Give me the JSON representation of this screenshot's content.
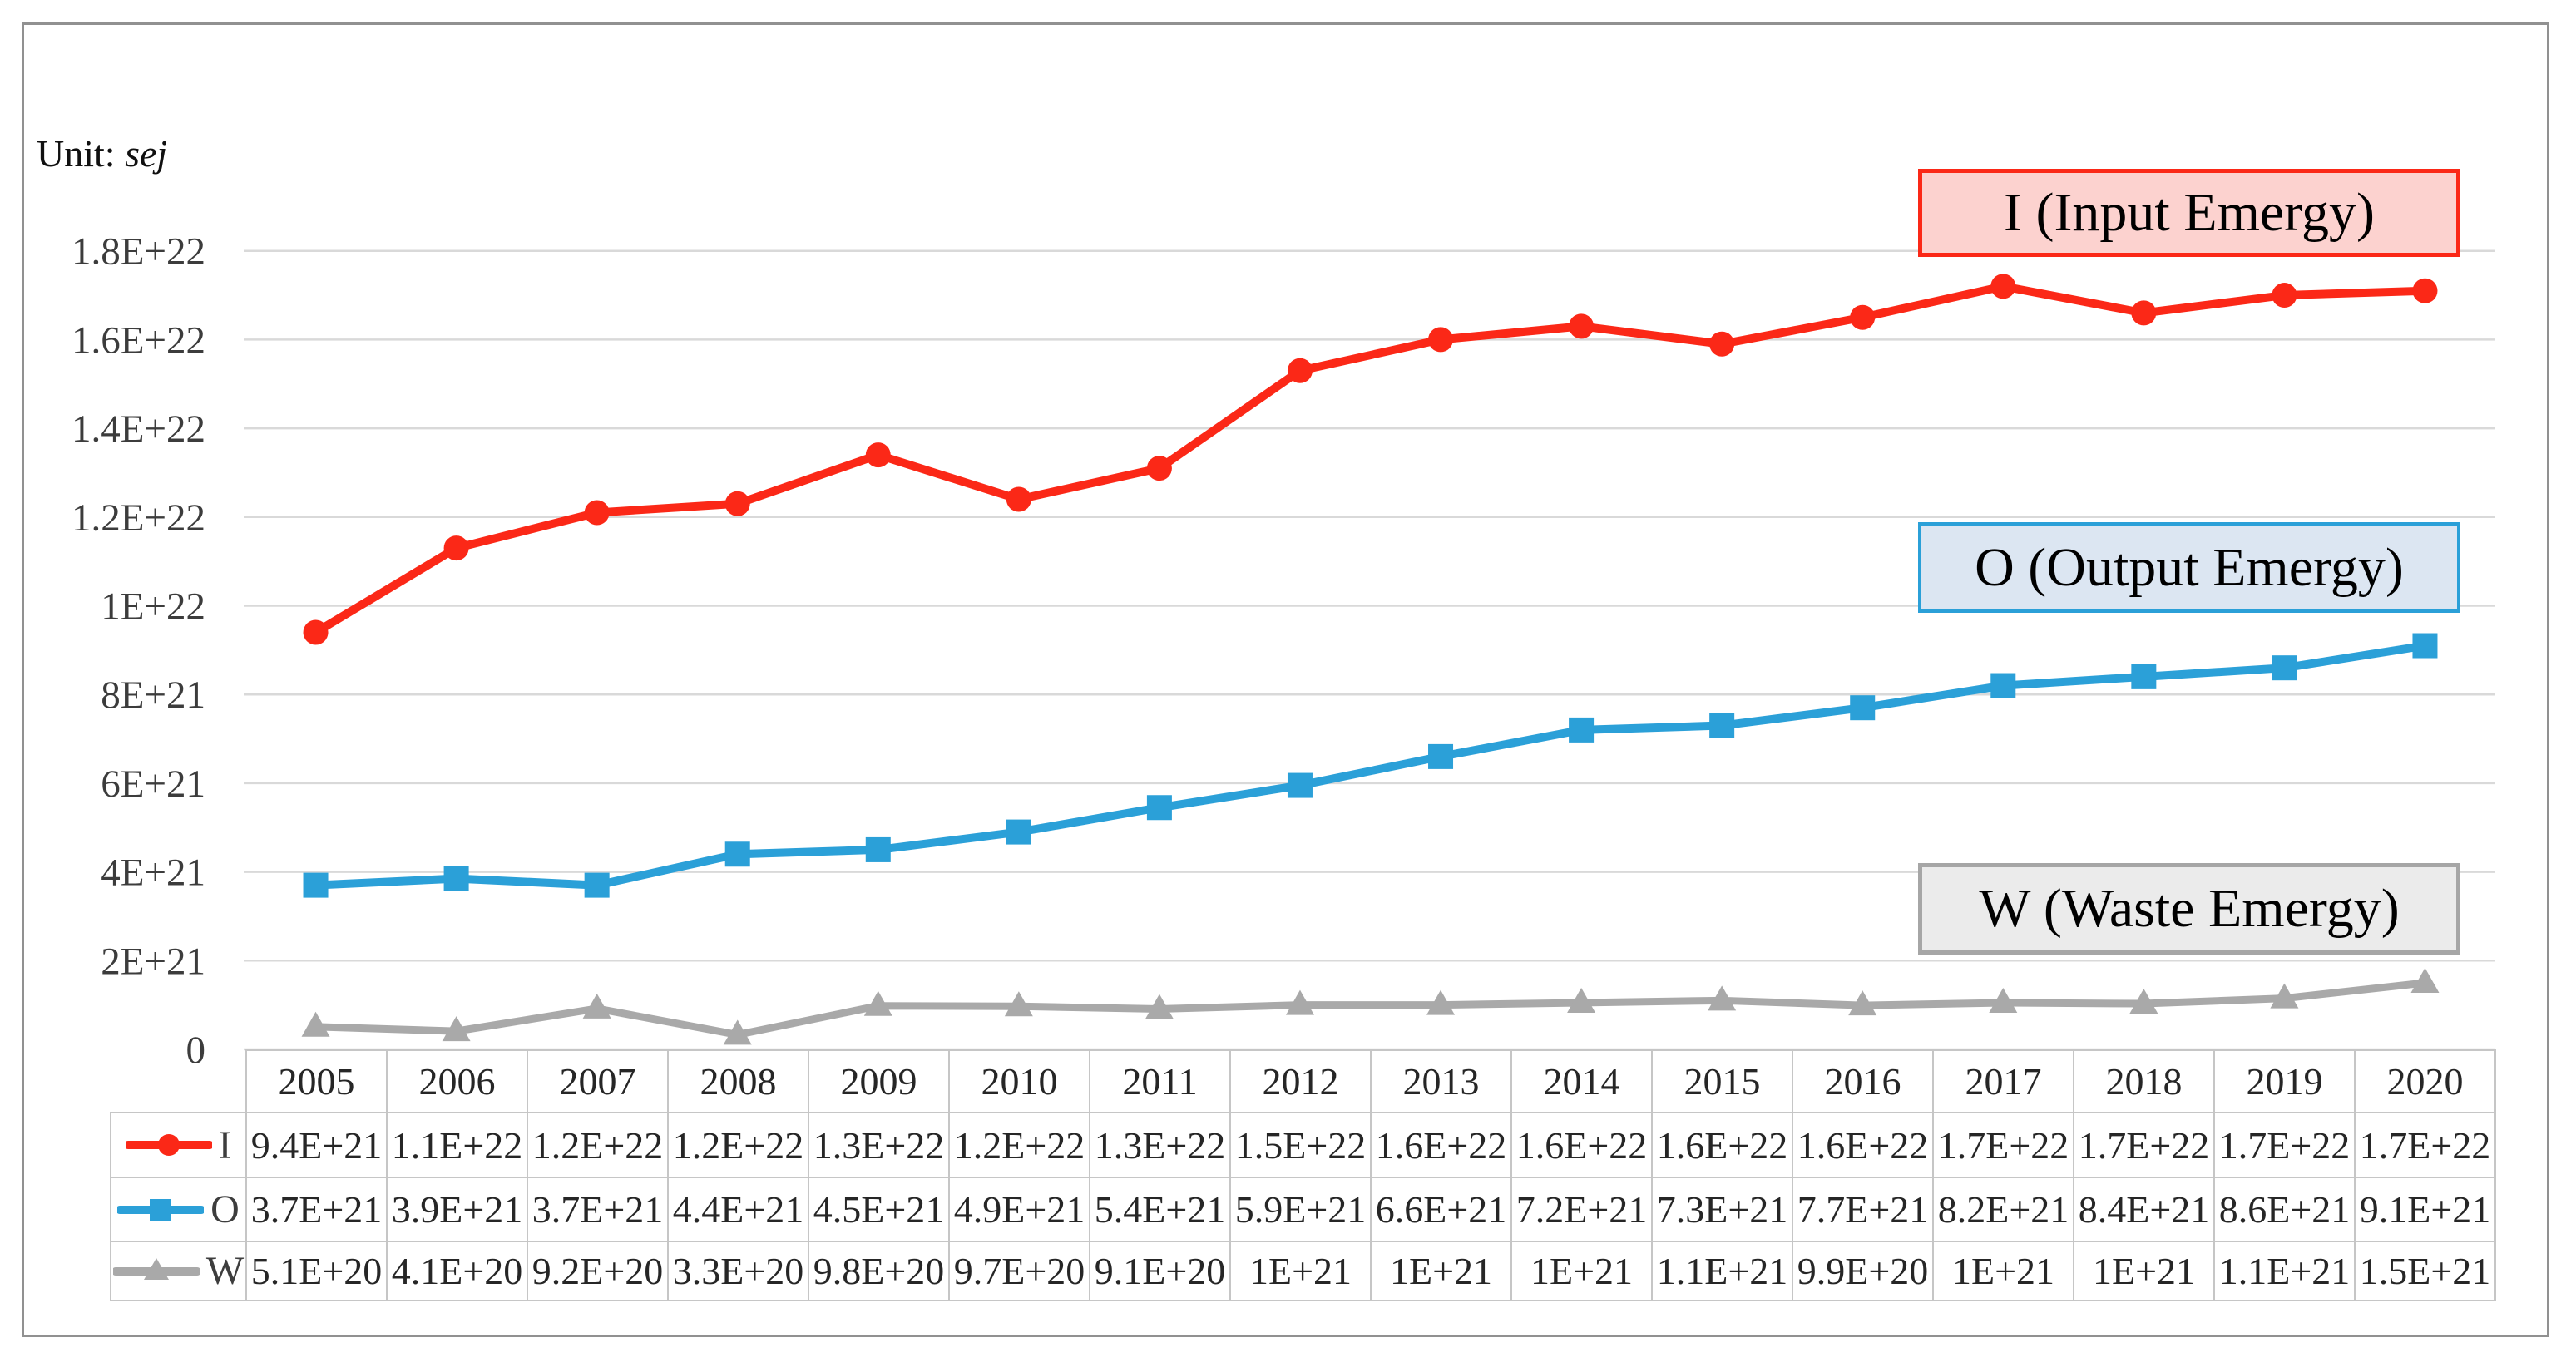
{
  "unit_label": {
    "prefix": "Unit: ",
    "unit": "sej"
  },
  "palette": {
    "gridline": "#d9d9d9",
    "table_border": "#c6c6c6",
    "tick_text": "#3c3c3c",
    "outer_border": "#919191"
  },
  "chart_data": {
    "type": "line",
    "title": "",
    "xlabel": "",
    "ylabel": "Unit: sej",
    "grid": true,
    "legend_position": "floating-right",
    "ylim": [
      0,
      1.8e+22
    ],
    "x": [
      2005,
      2006,
      2007,
      2008,
      2009,
      2010,
      2011,
      2012,
      2013,
      2014,
      2015,
      2016,
      2017,
      2018,
      2019,
      2020
    ],
    "y_ticks": {
      "labels": [
        "0",
        "2E+21",
        "4E+21",
        "6E+21",
        "8E+21",
        "1E+22",
        "1.2E+22",
        "1.4E+22",
        "1.6E+22",
        "1.8E+22"
      ],
      "values": [
        0,
        2e+21,
        4e+21,
        6e+21,
        8e+21,
        1e+22,
        1.2e+22,
        1.4e+22,
        1.6e+22,
        1.8e+22
      ]
    },
    "series": [
      {
        "id": "I",
        "name": "I",
        "label": "I (Input Emergy)",
        "marker": "circle",
        "color": "#fb2817",
        "legend_fill": "#fcd2cf",
        "legend_border": "#fb2817",
        "values": [
          9.4e+21,
          1.13e+22,
          1.21e+22,
          1.23e+22,
          1.34e+22,
          1.24e+22,
          1.31e+22,
          1.53e+22,
          1.6e+22,
          1.63e+22,
          1.59e+22,
          1.65e+22,
          1.72e+22,
          1.66e+22,
          1.7e+22,
          1.71e+22
        ],
        "values_display": [
          "9.4E+21",
          "1.1E+22",
          "1.2E+22",
          "1.2E+22",
          "1.3E+22",
          "1.2E+22",
          "1.3E+22",
          "1.5E+22",
          "1.6E+22",
          "1.6E+22",
          "1.6E+22",
          "1.6E+22",
          "1.7E+22",
          "1.7E+22",
          "1.7E+22",
          "1.7E+22"
        ]
      },
      {
        "id": "O",
        "name": "O",
        "label": "O (Output Emergy)",
        "marker": "square",
        "color": "#2ba0d8",
        "legend_fill": "#dce6f2",
        "legend_border": "#2ba0d8",
        "values": [
          3.7e+21,
          3.85e+21,
          3.7e+21,
          4.4e+21,
          4.5e+21,
          4.9e+21,
          5.45e+21,
          5.95e+21,
          6.6e+21,
          7.2e+21,
          7.3e+21,
          7.7e+21,
          8.2e+21,
          8.4e+21,
          8.6e+21,
          9.1e+21
        ],
        "values_display": [
          "3.7E+21",
          "3.9E+21",
          "3.7E+21",
          "4.4E+21",
          "4.5E+21",
          "4.9E+21",
          "5.4E+21",
          "5.9E+21",
          "6.6E+21",
          "7.2E+21",
          "7.3E+21",
          "7.7E+21",
          "8.2E+21",
          "8.4E+21",
          "8.6E+21",
          "9.1E+21"
        ]
      },
      {
        "id": "W",
        "name": "W",
        "label": "W (Waste Emergy)",
        "marker": "triangle",
        "color": "#a9a9a9",
        "legend_fill": "#ebebeb",
        "legend_border": "#a6a6a6",
        "values": [
          5.1e+20,
          4.1e+20,
          9.2e+20,
          3.3e+20,
          9.8e+20,
          9.7e+20,
          9.1e+20,
          1e+21,
          1e+21,
          1.05e+21,
          1.1e+21,
          9.9e+20,
          1.05e+21,
          1.03e+21,
          1.15e+21,
          1.5e+21
        ],
        "values_display": [
          "5.1E+20",
          "4.1E+20",
          "9.2E+20",
          "3.3E+20",
          "9.8E+20",
          "9.7E+20",
          "9.1E+20",
          "1E+21",
          "1E+21",
          "1E+21",
          "1.1E+21",
          "9.9E+20",
          "1E+21",
          "1E+21",
          "1.1E+21",
          "1.5E+21"
        ]
      }
    ]
  }
}
